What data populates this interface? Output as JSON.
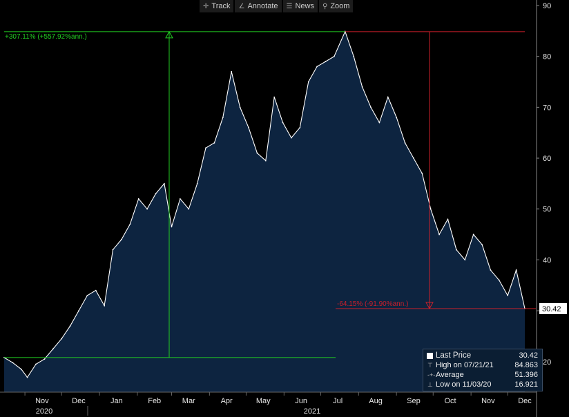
{
  "toolbar": {
    "items": [
      {
        "label": "Track",
        "icon": "crosshair-icon"
      },
      {
        "label": "Annotate",
        "icon": "pencil-icon"
      },
      {
        "label": "News",
        "icon": "news-icon"
      },
      {
        "label": "Zoom",
        "icon": "magnifier-icon"
      }
    ]
  },
  "annotations": {
    "gain_text": "+307.11% (+557.92%ann.)",
    "loss_text": "-64.15% (-91.90%ann.)",
    "gain_color": "#22cc22",
    "loss_color": "#cc1f2a"
  },
  "price_label": "30.42",
  "legend": {
    "rows": [
      {
        "label": "Last Price",
        "value": "30.42",
        "icon": "square-icon"
      },
      {
        "label": "High on 07/21/21",
        "value": "84.863",
        "icon": "high-marker-icon"
      },
      {
        "label": "Average",
        "value": "51.396",
        "icon": "average-marker-icon"
      },
      {
        "label": "Low on 11/03/20",
        "value": "16.921",
        "icon": "low-marker-icon"
      }
    ]
  },
  "chart_data": {
    "type": "area",
    "ylim": [
      14,
      90
    ],
    "y_ticks": [
      20,
      30,
      40,
      50,
      60,
      70,
      80,
      90
    ],
    "x_months": [
      "Nov",
      "Dec",
      "Jan",
      "Feb",
      "Mar",
      "Apr",
      "May",
      "Jun",
      "Jul",
      "Aug",
      "Sep",
      "Oct",
      "Nov",
      "Dec"
    ],
    "x_years": [
      "2020",
      "2021"
    ],
    "grid": false,
    "line_color": "#ffffff",
    "fill_color": "#0d2440",
    "series": [
      {
        "x": [
          "2020-10-15",
          "2020-10-22",
          "2020-10-29",
          "2020-11-03",
          "2020-11-10",
          "2020-11-17",
          "2020-11-24",
          "2020-12-01",
          "2020-12-08",
          "2020-12-15",
          "2020-12-22",
          "2020-12-29",
          "2021-01-05",
          "2021-01-12",
          "2021-01-19",
          "2021-01-26",
          "2021-02-02",
          "2021-02-09",
          "2021-02-16",
          "2021-02-23",
          "2021-03-01",
          "2021-03-08",
          "2021-03-15",
          "2021-03-22",
          "2021-03-29",
          "2021-04-05",
          "2021-04-12",
          "2021-04-19",
          "2021-04-26",
          "2021-05-03",
          "2021-05-10",
          "2021-05-17",
          "2021-05-24",
          "2021-05-31",
          "2021-06-07",
          "2021-06-14",
          "2021-06-21",
          "2021-06-28",
          "2021-07-05",
          "2021-07-12",
          "2021-07-21",
          "2021-07-28",
          "2021-08-04",
          "2021-08-11",
          "2021-08-18",
          "2021-08-25",
          "2021-09-01",
          "2021-09-08",
          "2021-09-15",
          "2021-09-22",
          "2021-09-29",
          "2021-10-06",
          "2021-10-13",
          "2021-10-20",
          "2021-10-27",
          "2021-11-03",
          "2021-11-10",
          "2021-11-17",
          "2021-11-24",
          "2021-12-01",
          "2021-12-08",
          "2021-12-15"
        ],
        "values": [
          20.8,
          19.8,
          18.5,
          16.9,
          19.5,
          20.5,
          22.5,
          24.5,
          27.0,
          30.0,
          33.0,
          34.0,
          31.0,
          42.0,
          44.0,
          47.0,
          52.0,
          50.0,
          53.0,
          55.0,
          46.5,
          52.0,
          50.0,
          55.0,
          62.0,
          63.0,
          68.0,
          77.0,
          70.0,
          66.0,
          61.0,
          59.5,
          72.0,
          67.0,
          64.0,
          66.0,
          75.0,
          78.0,
          79.0,
          80.0,
          84.9,
          80.0,
          74.0,
          70.0,
          67.0,
          72.0,
          68.0,
          63.0,
          60.0,
          57.0,
          50.0,
          45.0,
          48.0,
          42.0,
          40.0,
          45.0,
          43.0,
          38.0,
          36.0,
          33.0,
          38.0,
          30.42
        ]
      }
    ],
    "gain_line": {
      "start_value": 20.8,
      "end_value": 84.863
    },
    "loss_line": {
      "start_value": 84.863,
      "end_value": 30.42
    }
  }
}
